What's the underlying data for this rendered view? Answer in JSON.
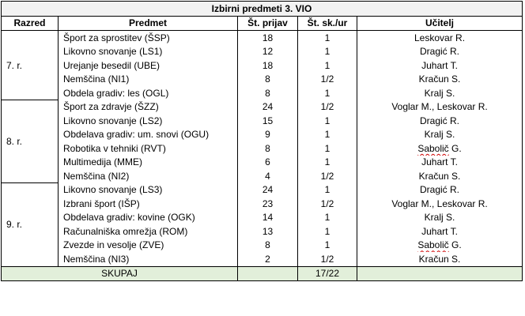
{
  "title": "Izbirni predmeti 3. VIO",
  "headers": [
    "Razred",
    "Predmet",
    "Št. prijav",
    "Št. sk./ur",
    "Učitelj"
  ],
  "groups": [
    {
      "grade": "7. r.",
      "rows": [
        {
          "subject": "Šport za sprostitev (ŠSP)",
          "applications": "18",
          "groups_hours": "1",
          "teacher": "Leskovar R."
        },
        {
          "subject": "Likovno snovanje (LS1)",
          "applications": "12",
          "groups_hours": "1",
          "teacher": "Dragić R."
        },
        {
          "subject": "Urejanje besedil (UBE)",
          "applications": "18",
          "groups_hours": "1",
          "teacher": "Juhart T."
        },
        {
          "subject": "Nemščina (NI1)",
          "applications": "8",
          "groups_hours": "1/2",
          "teacher": "Kračun S."
        },
        {
          "subject": "Obdela gradiv: les (OGL)",
          "applications": "8",
          "groups_hours": "1",
          "teacher": "Kralj S."
        }
      ]
    },
    {
      "grade": "8. r.",
      "rows": [
        {
          "subject": "Šport za zdravje (ŠZZ)",
          "applications": "24",
          "groups_hours": "1/2",
          "teacher": "Voglar M., Leskovar R."
        },
        {
          "subject": "Likovno snovanje (LS2)",
          "applications": "15",
          "groups_hours": "1",
          "teacher": "Dragić R."
        },
        {
          "subject": "Obdelava gradiv: um. snovi (OGU)",
          "applications": "9",
          "groups_hours": "1",
          "teacher": "Kralj S."
        },
        {
          "subject": "Robotika v tehniki (RVT)",
          "applications": "8",
          "groups_hours": "1",
          "teacher": "Sabolič G."
        },
        {
          "subject": "Multimedija (MME)",
          "applications": "6",
          "groups_hours": "1",
          "teacher": "Juhart T."
        },
        {
          "subject": "Nemščina (NI2)",
          "applications": "4",
          "groups_hours": "1/2",
          "teacher": "Kračun S."
        }
      ]
    },
    {
      "grade": "9. r.",
      "rows": [
        {
          "subject": "Likovno snovanje (LS3)",
          "applications": "24",
          "groups_hours": "1",
          "teacher": "Dragić R."
        },
        {
          "subject": "Izbrani šport (IŠP)",
          "applications": "23",
          "groups_hours": "1/2",
          "teacher": "Voglar M., Leskovar R."
        },
        {
          "subject": "Obdelava gradiv: kovine (OGK)",
          "applications": "14",
          "groups_hours": "1",
          "teacher": "Kralj S."
        },
        {
          "subject": "Računalniška omrežja (ROM)",
          "applications": "13",
          "groups_hours": "1",
          "teacher": "Juhart T."
        },
        {
          "subject": "Zvezde in vesolje (ZVE)",
          "applications": "8",
          "groups_hours": "1",
          "teacher": "Sabolič G."
        },
        {
          "subject": "Nemščina (NI3)",
          "applications": "2",
          "groups_hours": "1/2",
          "teacher": "Kračun S."
        }
      ]
    }
  ],
  "summary": {
    "label": "SKUPAJ",
    "total": "17/22"
  },
  "colors": {
    "title_bg": "#f2f2f2",
    "summary_bg": "#e2efda",
    "spellcheck": "#d00000"
  }
}
